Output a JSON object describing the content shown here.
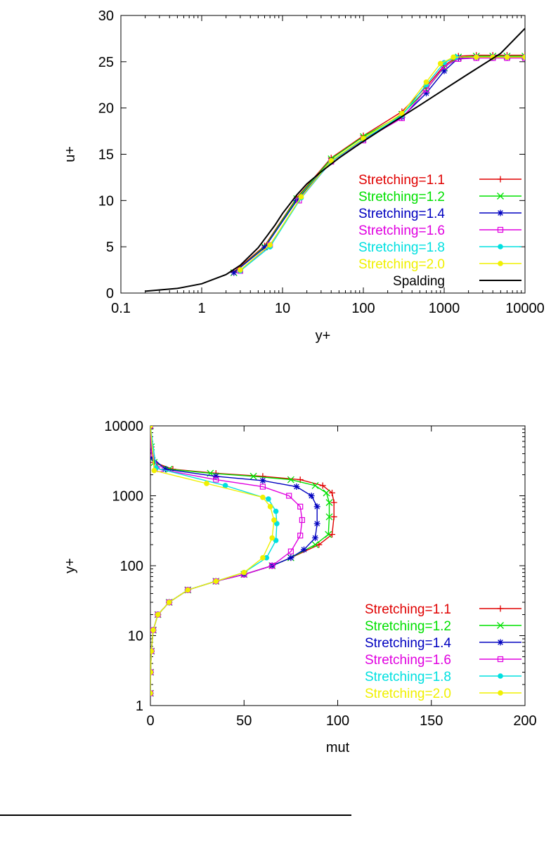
{
  "chart_data": [
    {
      "type": "line",
      "xscale": "log",
      "xlabel": "y+",
      "ylabel": "u+",
      "xlim": [
        0.1,
        10000
      ],
      "ylim": [
        0,
        30
      ],
      "xticks": [
        "0.1",
        "1",
        "10",
        "100",
        "1000",
        "10000"
      ],
      "yticks": [
        "0",
        "5",
        "10",
        "15",
        "20",
        "25",
        "30"
      ],
      "grid": false,
      "legend_position": "bottom-right",
      "series": [
        {
          "name": "Stretching=1.1",
          "color": "#e00000",
          "marker": "plus",
          "x": [
            2.5,
            6,
            15,
            40,
            100,
            300,
            600,
            1000,
            1500,
            2500,
            4000,
            6000,
            10000
          ],
          "y": [
            2.3,
            5.1,
            10.3,
            14.6,
            17.0,
            19.6,
            22.3,
            24.6,
            25.6,
            25.7,
            25.7,
            25.7,
            25.7
          ]
        },
        {
          "name": "Stretching=1.2",
          "color": "#00e000",
          "marker": "x",
          "x": [
            2.5,
            6,
            15,
            40,
            100,
            300,
            600,
            1000,
            1500,
            2500,
            4000,
            6000,
            10000
          ],
          "y": [
            2.2,
            5.0,
            10.2,
            14.5,
            16.9,
            19.3,
            22.0,
            24.4,
            25.5,
            25.6,
            25.6,
            25.6,
            25.6
          ]
        },
        {
          "name": "Stretching=1.4",
          "color": "#0000c0",
          "marker": "star",
          "x": [
            2.5,
            6,
            15,
            40,
            100,
            300,
            600,
            1000,
            1500,
            2500,
            4000,
            6000,
            10000
          ],
          "y": [
            2.2,
            4.9,
            10.0,
            14.3,
            16.6,
            19.0,
            21.6,
            24.0,
            25.4,
            25.5,
            25.5,
            25.5,
            25.5
          ]
        },
        {
          "name": "Stretching=1.6",
          "color": "#e000e0",
          "marker": "square",
          "x": [
            3,
            7,
            16,
            40,
            100,
            300,
            600,
            1000,
            1500,
            2500,
            4000,
            6000,
            10000
          ],
          "y": [
            2.4,
            5.2,
            10.0,
            14.2,
            16.5,
            18.9,
            22.0,
            24.5,
            25.3,
            25.4,
            25.4,
            25.4,
            25.4
          ]
        },
        {
          "name": "Stretching=1.8",
          "color": "#00e0e0",
          "marker": "circle",
          "x": [
            3,
            7,
            17,
            40,
            100,
            300,
            600,
            1000,
            1400,
            2500,
            4000,
            6000,
            10000
          ],
          "y": [
            2.4,
            5.0,
            10.3,
            14.2,
            16.6,
            19.2,
            22.5,
            24.9,
            25.5,
            25.5,
            25.5,
            25.5,
            25.5
          ]
        },
        {
          "name": "Stretching=2.0",
          "color": "#f0f000",
          "marker": "circle",
          "x": [
            3,
            7,
            17,
            40,
            100,
            300,
            600,
            900,
            1300,
            2500,
            4000,
            6000,
            10000
          ],
          "y": [
            2.5,
            5.2,
            10.4,
            14.3,
            16.7,
            19.4,
            22.8,
            24.8,
            25.5,
            25.5,
            25.5,
            25.5,
            25.5
          ]
        },
        {
          "name": "Spalding",
          "color": "#000000",
          "marker": "none",
          "x": [
            0.2,
            0.5,
            1,
            2,
            3,
            5,
            8,
            10,
            15,
            20,
            30,
            50,
            100,
            200,
            500,
            1000,
            2000,
            5000,
            10000
          ],
          "y": [
            0.2,
            0.5,
            1.0,
            2.0,
            3.0,
            4.9,
            7.3,
            8.6,
            10.6,
            11.8,
            13.1,
            14.6,
            16.4,
            18.1,
            20.3,
            22.0,
            23.7,
            25.9,
            28.6
          ]
        }
      ]
    },
    {
      "type": "line",
      "yscale": "log",
      "xlabel": "mut",
      "ylabel": "y+",
      "xlim": [
        0,
        200
      ],
      "ylim": [
        1,
        10000
      ],
      "xticks": [
        "0",
        "50",
        "100",
        "150",
        "200"
      ],
      "yticks": [
        "1",
        "10",
        "100",
        "1000",
        "10000"
      ],
      "grid": false,
      "legend_position": "bottom-right",
      "series": [
        {
          "name": "Stretching=1.1",
          "color": "#e00000",
          "marker": "plus",
          "x": [
            0,
            0.1,
            0.5,
            1.5,
            4,
            10,
            20,
            35,
            50,
            65,
            75,
            90,
            97,
            98,
            98,
            97,
            92,
            80,
            60,
            35,
            12,
            2,
            0.5,
            0
          ],
          "y": [
            1.5,
            3,
            6,
            12,
            20,
            30,
            45,
            60,
            75,
            100,
            130,
            200,
            280,
            500,
            800,
            1100,
            1400,
            1700,
            1900,
            2100,
            2400,
            3000,
            5000,
            10000
          ]
        },
        {
          "name": "Stretching=1.2",
          "color": "#00e000",
          "marker": "x",
          "x": [
            0,
            0.1,
            0.5,
            1.5,
            4,
            10,
            20,
            35,
            50,
            65,
            75,
            88,
            95,
            95.5,
            95.5,
            94,
            88,
            75,
            55,
            32,
            10,
            2,
            0.5,
            0
          ],
          "y": [
            1.5,
            3,
            6,
            12,
            20,
            30,
            45,
            60,
            75,
            100,
            130,
            200,
            280,
            500,
            800,
            1100,
            1400,
            1700,
            1900,
            2100,
            2400,
            3000,
            5000,
            10000
          ]
        },
        {
          "name": "Stretching=1.4",
          "color": "#0000c0",
          "marker": "star",
          "x": [
            0,
            0.1,
            0.5,
            1.5,
            4,
            10,
            20,
            35,
            50,
            65,
            75,
            82,
            88,
            89,
            89,
            86,
            78,
            60,
            35,
            8,
            1,
            0
          ],
          "y": [
            1.5,
            3,
            6,
            12,
            20,
            30,
            45,
            60,
            75,
            100,
            130,
            170,
            250,
            400,
            700,
            1000,
            1350,
            1650,
            1900,
            2400,
            3500,
            10000
          ]
        },
        {
          "name": "Stretching=1.6",
          "color": "#e000e0",
          "marker": "square",
          "x": [
            0,
            0.1,
            0.5,
            1.5,
            4,
            10,
            20,
            35,
            50,
            65,
            75,
            80,
            81,
            80,
            74,
            60,
            35,
            5,
            0.5,
            0
          ],
          "y": [
            1.5,
            3,
            6,
            12,
            20,
            30,
            45,
            60,
            75,
            100,
            160,
            270,
            450,
            700,
            1000,
            1350,
            1700,
            2400,
            4000,
            10000
          ]
        },
        {
          "name": "Stretching=1.8",
          "color": "#00e0e0",
          "marker": "circle",
          "x": [
            0,
            0.1,
            0.5,
            1.5,
            4,
            10,
            20,
            35,
            50,
            62,
            67,
            67.5,
            67,
            63,
            40,
            3,
            0
          ],
          "y": [
            1.5,
            3,
            6,
            12,
            20,
            30,
            45,
            60,
            80,
            130,
            230,
            400,
            600,
            900,
            1400,
            2500,
            10000
          ]
        },
        {
          "name": "Stretching=2.0",
          "color": "#f0f000",
          "marker": "circle",
          "x": [
            0,
            0.1,
            0.5,
            1.5,
            4,
            10,
            20,
            35,
            50,
            60,
            65,
            66,
            64,
            60,
            30,
            2,
            0
          ],
          "y": [
            1.5,
            3,
            6,
            12,
            20,
            30,
            45,
            60,
            80,
            130,
            250,
            450,
            700,
            950,
            1500,
            2300,
            10000
          ]
        }
      ]
    }
  ]
}
